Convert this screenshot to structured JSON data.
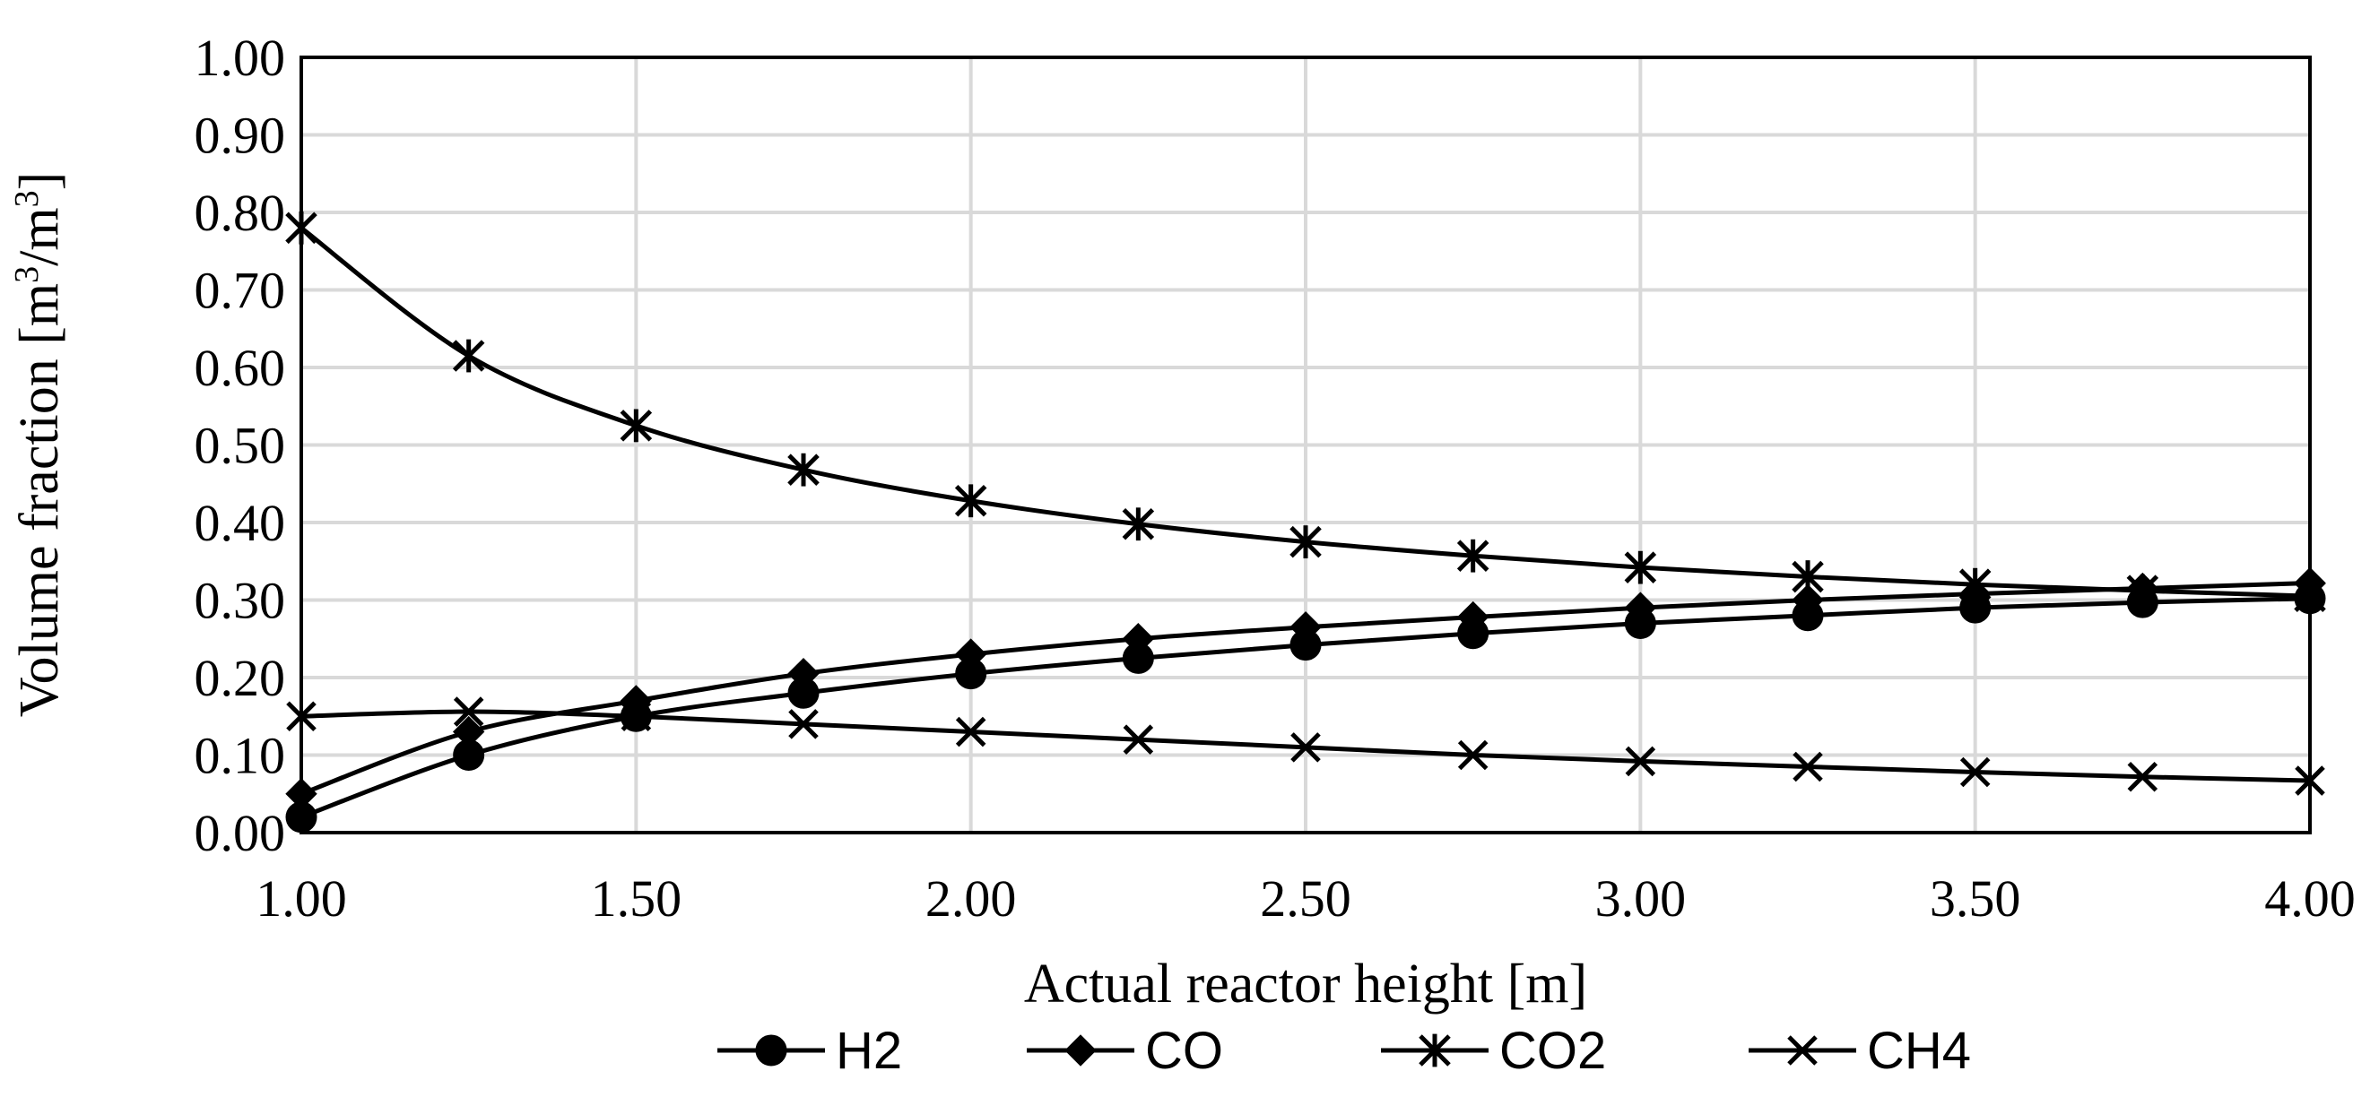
{
  "chart_data": {
    "type": "line",
    "xlabel": "Actual reactor height [m]",
    "ylabel_main": "Volume fraction [m",
    "ylabel_sup1": "3",
    "ylabel_mid": "/m",
    "ylabel_sup2": "3",
    "ylabel_end": "]",
    "xlim": [
      1.0,
      4.0
    ],
    "ylim": [
      0.0,
      1.0
    ],
    "x_ticks": [
      "1.00",
      "1.50",
      "2.00",
      "2.50",
      "3.00",
      "3.50",
      "4.00"
    ],
    "y_ticks": [
      "0.00",
      "0.10",
      "0.20",
      "0.30",
      "0.40",
      "0.50",
      "0.60",
      "0.70",
      "0.80",
      "0.90",
      "1.00"
    ],
    "x": [
      1.0,
      1.25,
      1.5,
      1.75,
      2.0,
      2.25,
      2.5,
      2.75,
      3.0,
      3.25,
      3.5,
      3.75,
      4.0
    ],
    "series": [
      {
        "name": "H2",
        "marker": "circle",
        "values": [
          0.02,
          0.1,
          0.15,
          0.18,
          0.205,
          0.225,
          0.242,
          0.257,
          0.27,
          0.28,
          0.29,
          0.297,
          0.302
        ]
      },
      {
        "name": "CO",
        "marker": "diamond",
        "values": [
          0.05,
          0.13,
          0.17,
          0.205,
          0.23,
          0.25,
          0.265,
          0.278,
          0.29,
          0.3,
          0.308,
          0.315,
          0.322
        ]
      },
      {
        "name": "CO2",
        "marker": "asterisk",
        "values": [
          0.78,
          0.615,
          0.525,
          0.468,
          0.428,
          0.398,
          0.375,
          0.357,
          0.342,
          0.33,
          0.32,
          0.312,
          0.305
        ]
      },
      {
        "name": "CH4",
        "marker": "x",
        "values": [
          0.15,
          0.156,
          0.15,
          0.14,
          0.13,
          0.12,
          0.11,
          0.1,
          0.092,
          0.085,
          0.078,
          0.072,
          0.067
        ]
      }
    ]
  }
}
